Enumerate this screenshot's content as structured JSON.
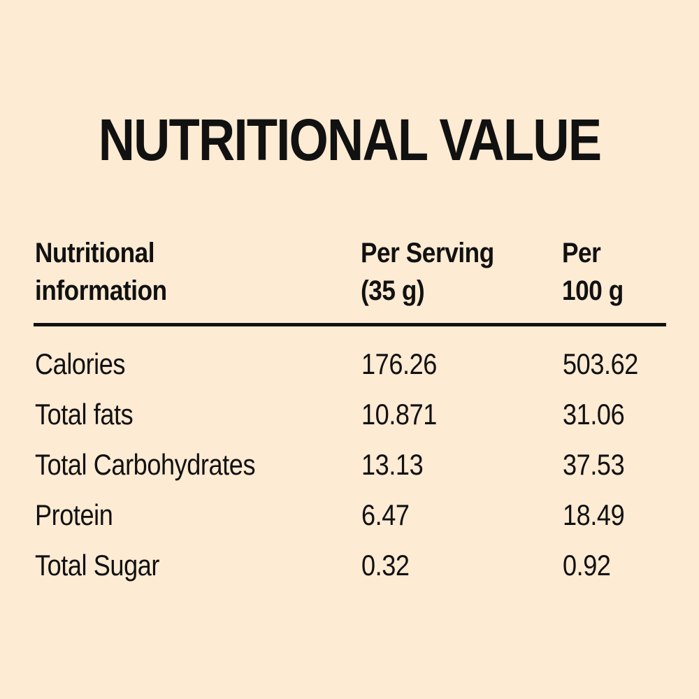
{
  "colors": {
    "background": "#fdebd3",
    "text": "#111111",
    "rule": "#111111"
  },
  "title": "NUTRITIONAL VALUE",
  "table": {
    "headers": {
      "col1_line1": "Nutritional",
      "col1_line2": "information",
      "col2_line1": "Per Serving",
      "col2_line2": "(35 g)",
      "col3_line1": "Per",
      "col3_line2": "100 g"
    },
    "rows": [
      {
        "name": "Calories",
        "per_serving": "176.26",
        "per_100g": "503.62"
      },
      {
        "name": "Total fats",
        "per_serving": "10.871",
        "per_100g": "31.06"
      },
      {
        "name": "Total Carbohydrates",
        "per_serving": "13.13",
        "per_100g": "37.53"
      },
      {
        "name": "Protein",
        "per_serving": "6.47",
        "per_100g": "18.49"
      },
      {
        "name": "Total Sugar",
        "per_serving": "0.32",
        "per_100g": "0.92"
      }
    ]
  }
}
